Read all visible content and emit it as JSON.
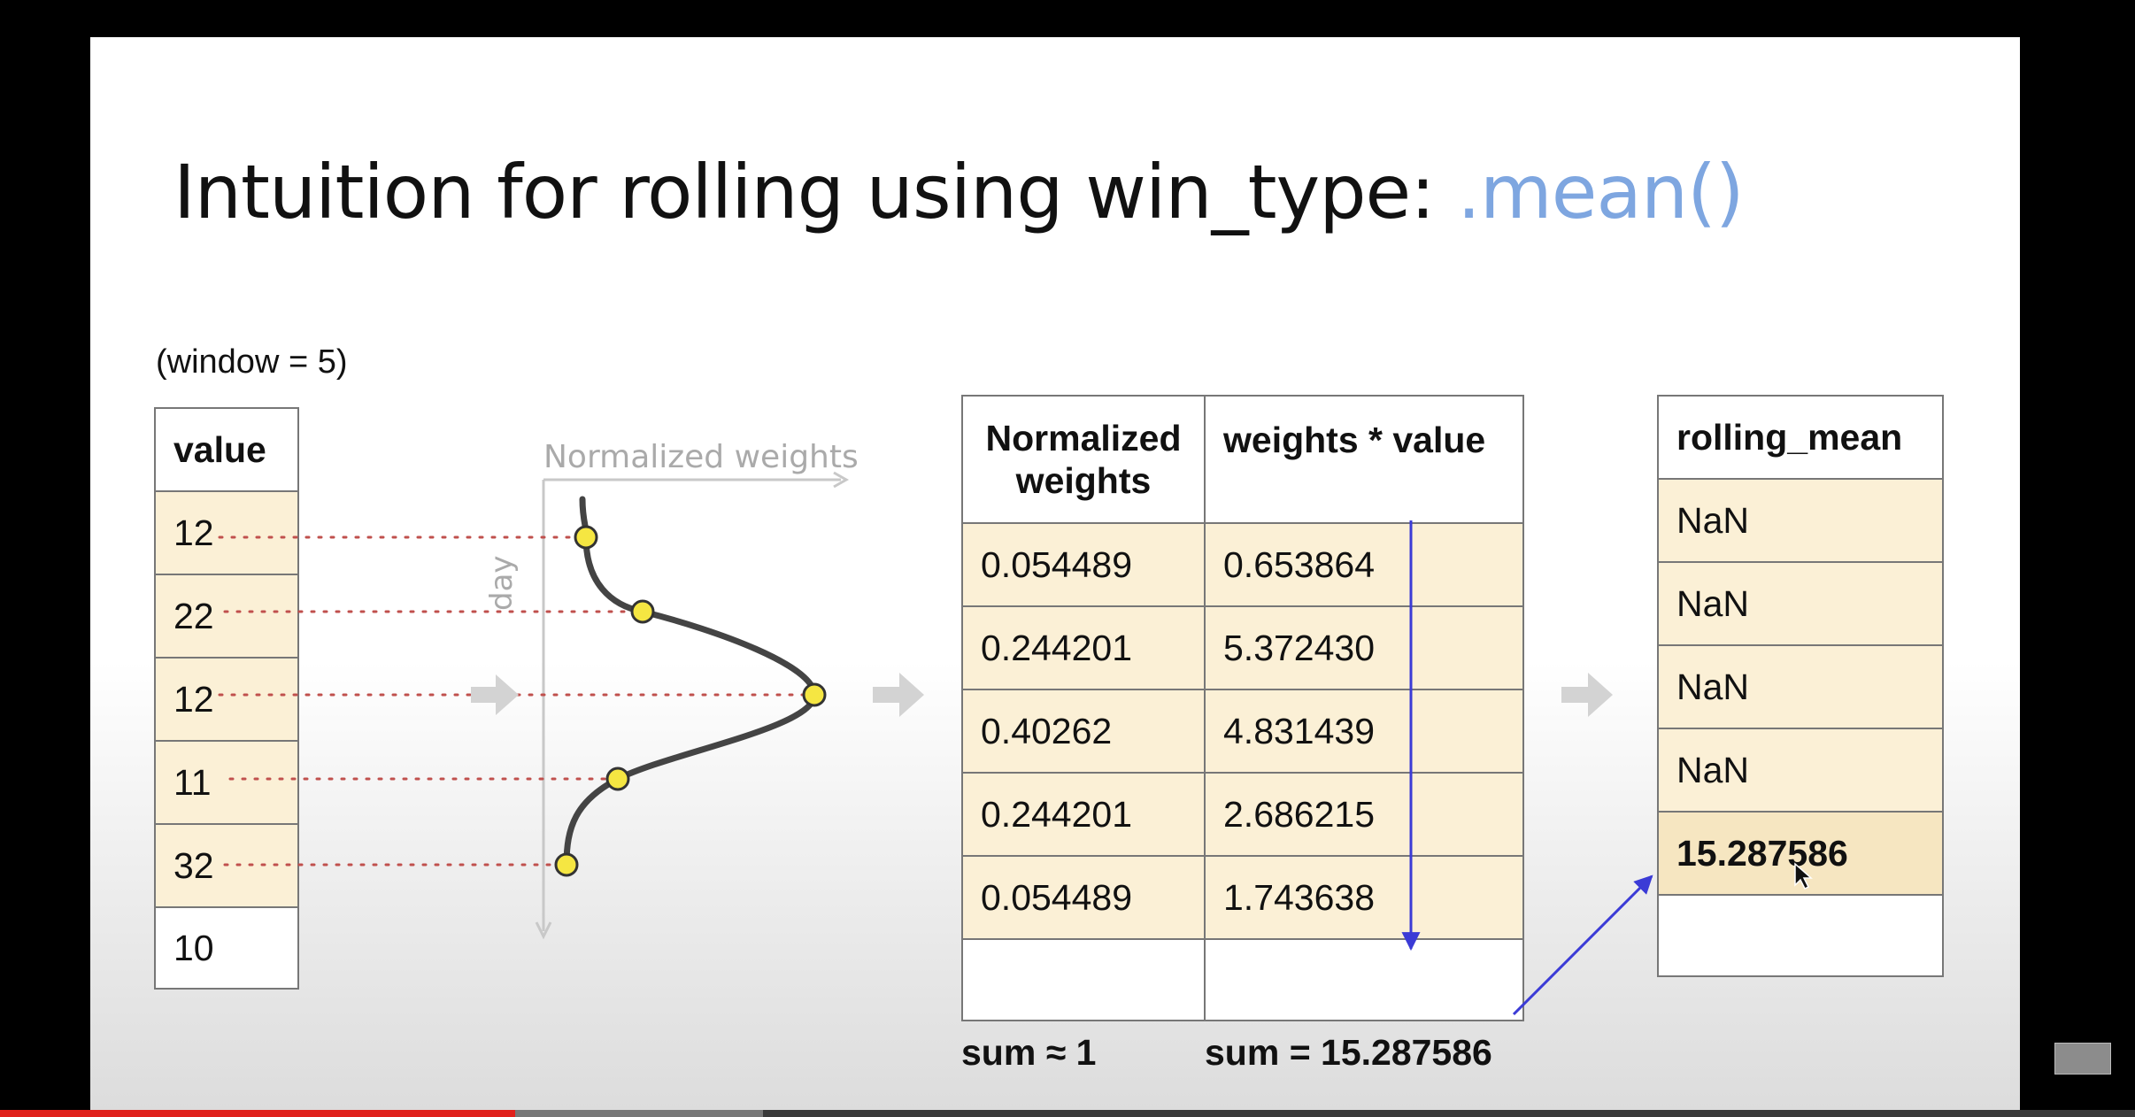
{
  "slide": {
    "title_main": "Intuition for rolling using win_type: ",
    "title_accent": ".mean()",
    "window_label": "(window = 5)"
  },
  "value_table": {
    "header": "value",
    "rows": [
      "12",
      "22",
      "12",
      "11",
      "32",
      "10"
    ]
  },
  "curve": {
    "x_label": "Normalized weights",
    "y_label": "day"
  },
  "weights_table": {
    "headers": [
      "Normalized weights",
      "weights * value"
    ],
    "rows": [
      [
        "0.054489",
        "0.653864"
      ],
      [
        "0.244201",
        "5.372430"
      ],
      [
        "0.40262",
        "4.831439"
      ],
      [
        "0.244201",
        "2.686215"
      ],
      [
        "0.054489",
        "1.743638"
      ],
      [
        "",
        ""
      ]
    ],
    "sum_weights": "sum ≈ 1",
    "sum_products": "sum = 15.287586"
  },
  "rolling_table": {
    "header": "rolling_mean",
    "rows": [
      "NaN",
      "NaN",
      "NaN",
      "NaN",
      "15.287586",
      ""
    ]
  },
  "colors": {
    "cell_fill": "#fbf0d6",
    "point_fill": "#f5e642",
    "dotted_line": "#c0504d",
    "arrow_line": "#3b3bd6",
    "accent": "#7ea6e0"
  }
}
